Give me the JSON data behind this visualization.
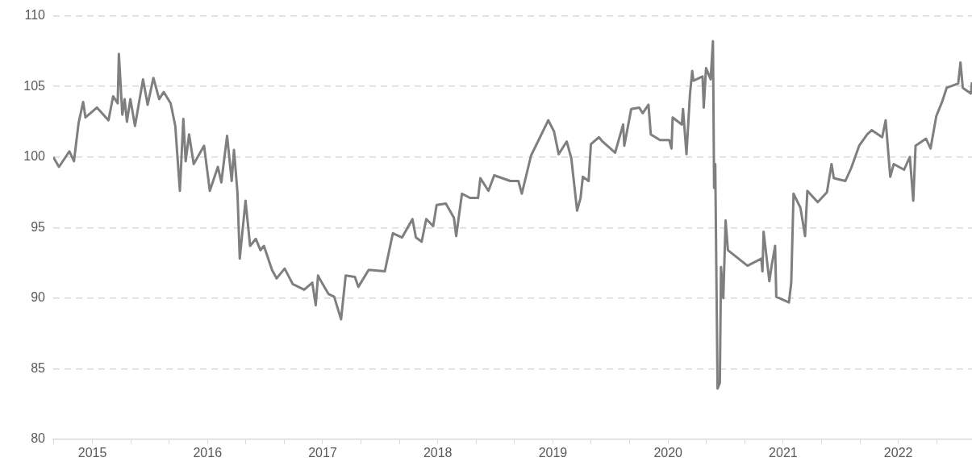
{
  "chart_data": {
    "type": "line",
    "color": "#7f7f7f",
    "marker": "none",
    "grid": "y",
    "x": [
      2014.66,
      2014.71,
      2014.8,
      2014.84,
      2014.88,
      2014.92,
      2014.94,
      2015.04,
      2015.14,
      2015.18,
      2015.22,
      2015.23,
      2015.26,
      2015.28,
      2015.3,
      2015.33,
      2015.37,
      2015.44,
      2015.48,
      2015.53,
      2015.58,
      2015.62,
      2015.68,
      2015.72,
      2015.76,
      2015.79,
      2015.81,
      2015.84,
      2015.88,
      2015.97,
      2016.02,
      2016.09,
      2016.12,
      2016.17,
      2016.21,
      2016.23,
      2016.26,
      2016.28,
      2016.33,
      2016.37,
      2016.42,
      2016.46,
      2016.49,
      2016.56,
      2016.6,
      2016.67,
      2016.74,
      2016.84,
      2016.91,
      2016.94,
      2016.96,
      2017.0,
      2017.05,
      2017.1,
      2017.16,
      2017.2,
      2017.28,
      2017.31,
      2017.4,
      2017.54,
      2017.61,
      2017.69,
      2017.78,
      2017.81,
      2017.86,
      2017.9,
      2017.96,
      2017.99,
      2018.07,
      2018.14,
      2018.16,
      2018.21,
      2018.28,
      2018.35,
      2018.37,
      2018.44,
      2018.49,
      2018.63,
      2018.7,
      2018.73,
      2018.81,
      2018.87,
      2018.96,
      2019.01,
      2019.05,
      2019.12,
      2019.16,
      2019.21,
      2019.24,
      2019.26,
      2019.31,
      2019.33,
      2019.4,
      2019.43,
      2019.54,
      2019.61,
      2019.62,
      2019.68,
      2019.75,
      2019.78,
      2019.83,
      2019.85,
      2019.93,
      2020.01,
      2020.03,
      2020.04,
      2020.12,
      2020.13,
      2020.16,
      2020.19,
      2020.21,
      2020.22,
      2020.3,
      2020.31,
      2020.33,
      2020.37,
      2020.39,
      2020.4,
      2020.41,
      2020.43,
      2020.45,
      2020.46,
      2020.48,
      2020.5,
      2020.52,
      2020.69,
      2020.81,
      2020.82,
      2020.83,
      2020.88,
      2020.9,
      2020.93,
      2020.94,
      2021.05,
      2021.07,
      2021.09,
      2021.15,
      2021.19,
      2021.21,
      2021.3,
      2021.38,
      2021.42,
      2021.44,
      2021.54,
      2021.59,
      2021.66,
      2021.73,
      2021.77,
      2021.86,
      2021.89,
      2021.93,
      2021.96,
      2022.05,
      2022.1,
      2022.13,
      2022.15,
      2022.24,
      2022.28,
      2022.33,
      2022.38,
      2022.42,
      2022.52,
      2022.54,
      2022.56,
      2022.63,
      2022.64
    ],
    "values": [
      100.0,
      99.3,
      100.4,
      99.7,
      102.4,
      103.9,
      102.8,
      103.5,
      102.6,
      104.3,
      103.8,
      107.3,
      103.0,
      104.1,
      102.5,
      104.1,
      102.2,
      105.5,
      103.7,
      105.6,
      104.1,
      104.6,
      103.8,
      102.2,
      97.6,
      102.7,
      99.7,
      101.6,
      99.5,
      100.8,
      97.6,
      99.3,
      98.2,
      101.5,
      98.3,
      100.5,
      97.5,
      92.8,
      96.9,
      93.7,
      94.2,
      93.4,
      93.7,
      92.0,
      91.4,
      92.1,
      91.0,
      90.6,
      91.1,
      89.5,
      91.6,
      91.0,
      90.3,
      90.1,
      88.5,
      91.6,
      91.5,
      90.8,
      92.0,
      91.9,
      94.6,
      94.3,
      95.6,
      94.3,
      94.0,
      95.6,
      95.1,
      96.6,
      96.7,
      95.7,
      94.4,
      97.4,
      97.1,
      97.1,
      98.5,
      97.6,
      98.7,
      98.3,
      98.3,
      97.4,
      100.1,
      101.1,
      102.6,
      101.8,
      100.2,
      101.1,
      99.9,
      96.2,
      97.1,
      98.6,
      98.3,
      100.9,
      101.4,
      101.1,
      100.3,
      102.3,
      100.8,
      103.4,
      103.5,
      103.1,
      103.7,
      101.6,
      101.2,
      101.2,
      100.6,
      102.8,
      102.3,
      103.4,
      100.2,
      104.4,
      106.1,
      105.4,
      105.7,
      103.5,
      106.3,
      105.5,
      108.2,
      97.8,
      99.5,
      83.6,
      84.0,
      92.2,
      90.0,
      95.5,
      93.4,
      92.3,
      92.8,
      91.9,
      94.7,
      91.2,
      92.3,
      93.7,
      90.1,
      89.7,
      91.1,
      97.4,
      96.4,
      94.4,
      97.6,
      96.8,
      97.5,
      99.5,
      98.5,
      98.3,
      99.2,
      100.8,
      101.6,
      101.9,
      101.4,
      102.6,
      98.6,
      99.5,
      99.1,
      100.0,
      96.9,
      100.8,
      101.3,
      100.6,
      102.9,
      103.9,
      104.9,
      105.2,
      106.7,
      104.9,
      104.5,
      105.3
    ],
    "xlim": [
      2014.66,
      2022.64
    ],
    "xticks": [
      {
        "value": 2014.667,
        "label": null
      },
      {
        "value": 2015,
        "label": "2015"
      },
      {
        "value": 2015.333,
        "label": null
      },
      {
        "value": 2015.667,
        "label": null
      },
      {
        "value": 2016,
        "label": "2016"
      },
      {
        "value": 2016.333,
        "label": null
      },
      {
        "value": 2016.667,
        "label": null
      },
      {
        "value": 2017,
        "label": "2017"
      },
      {
        "value": 2017.333,
        "label": null
      },
      {
        "value": 2017.667,
        "label": null
      },
      {
        "value": 2018,
        "label": "2018"
      },
      {
        "value": 2018.333,
        "label": null
      },
      {
        "value": 2018.667,
        "label": null
      },
      {
        "value": 2019,
        "label": "2019"
      },
      {
        "value": 2019.333,
        "label": null
      },
      {
        "value": 2019.667,
        "label": null
      },
      {
        "value": 2020,
        "label": "2020"
      },
      {
        "value": 2020.333,
        "label": null
      },
      {
        "value": 2020.667,
        "label": null
      },
      {
        "value": 2021,
        "label": "2021"
      },
      {
        "value": 2021.333,
        "label": null
      },
      {
        "value": 2021.667,
        "label": null
      },
      {
        "value": 2022,
        "label": "2022"
      },
      {
        "value": 2022.333,
        "label": null
      }
    ],
    "ylim": [
      80,
      110
    ],
    "yticks": [
      80,
      85,
      90,
      95,
      100,
      105,
      110
    ]
  }
}
